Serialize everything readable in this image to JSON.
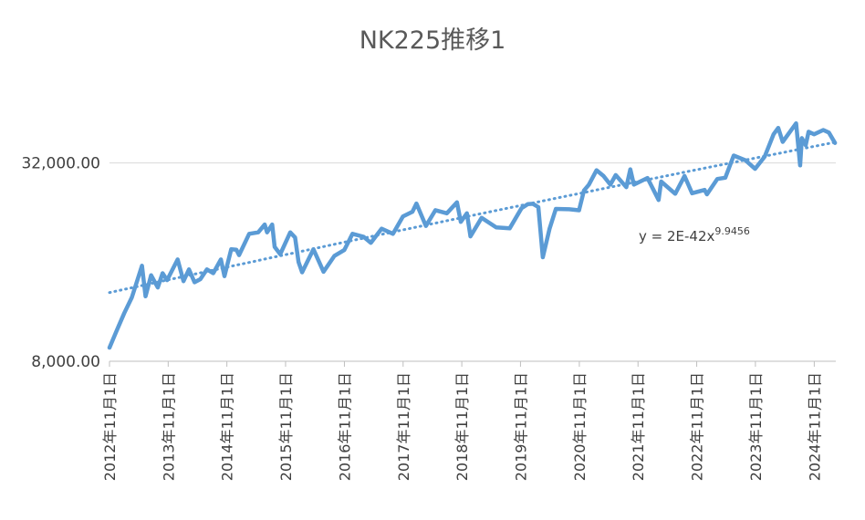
{
  "chart_data": {
    "type": "line",
    "title": "NK225推移1",
    "yscale": "log",
    "ylim": [
      8000,
      60000
    ],
    "yticks": [
      {
        "value": 8000,
        "label": "8,000.00"
      },
      {
        "value": 32000,
        "label": "32,000.00"
      }
    ],
    "xlim": [
      "2012-11-01",
      "2025-03-15"
    ],
    "xticks": [
      "2012年11月1日",
      "2013年11月1日",
      "2014年11月1日",
      "2015年11月1日",
      "2016年11月1日",
      "2017年11月1日",
      "2018年11月1日",
      "2019年11月1日",
      "2020年11月1日",
      "2021年11月1日",
      "2022年11月1日",
      "2023年11月1日",
      "2024年11月1日"
    ],
    "grid": {
      "horizontal": true,
      "vertical": false
    },
    "series": [
      {
        "color": "#5b9bd5",
        "points": [
          [
            "2012-11-01",
            8800
          ],
          [
            "2012-12-15",
            9900
          ],
          [
            "2013-02-01",
            11200
          ],
          [
            "2013-03-20",
            12500
          ],
          [
            "2013-05-22",
            15600
          ],
          [
            "2013-06-13",
            12600
          ],
          [
            "2013-07-18",
            14600
          ],
          [
            "2013-08-28",
            13400
          ],
          [
            "2013-09-27",
            14800
          ],
          [
            "2013-10-25",
            14100
          ],
          [
            "2013-12-30",
            16300
          ],
          [
            "2014-02-04",
            14000
          ],
          [
            "2014-03-10",
            15200
          ],
          [
            "2014-04-14",
            13900
          ],
          [
            "2014-05-20",
            14200
          ],
          [
            "2014-06-30",
            15200
          ],
          [
            "2014-08-08",
            14800
          ],
          [
            "2014-09-25",
            16300
          ],
          [
            "2014-10-17",
            14500
          ],
          [
            "2014-11-28",
            17500
          ],
          [
            "2014-12-30",
            17450
          ],
          [
            "2015-01-16",
            16800
          ],
          [
            "2015-03-20",
            19500
          ],
          [
            "2015-05-15",
            19700
          ],
          [
            "2015-06-24",
            20800
          ],
          [
            "2015-07-09",
            19700
          ],
          [
            "2015-08-10",
            20800
          ],
          [
            "2015-08-25",
            17800
          ],
          [
            "2015-09-29",
            16900
          ],
          [
            "2015-11-30",
            19700
          ],
          [
            "2015-12-30",
            19000
          ],
          [
            "2016-01-21",
            16000
          ],
          [
            "2016-02-12",
            14900
          ],
          [
            "2016-04-22",
            17500
          ],
          [
            "2016-06-24",
            14950
          ],
          [
            "2016-08-30",
            16700
          ],
          [
            "2016-10-31",
            17400
          ],
          [
            "2016-12-21",
            19500
          ],
          [
            "2017-02-28",
            19100
          ],
          [
            "2017-04-14",
            18300
          ],
          [
            "2017-06-20",
            20200
          ],
          [
            "2017-08-30",
            19500
          ],
          [
            "2017-10-31",
            22000
          ],
          [
            "2017-12-29",
            22750
          ],
          [
            "2018-01-23",
            24100
          ],
          [
            "2018-03-23",
            20600
          ],
          [
            "2018-05-21",
            23000
          ],
          [
            "2018-07-31",
            22500
          ],
          [
            "2018-10-02",
            24300
          ],
          [
            "2018-10-26",
            21200
          ],
          [
            "2018-12-03",
            22500
          ],
          [
            "2018-12-25",
            19150
          ],
          [
            "2019-03-04",
            21800
          ],
          [
            "2019-06-03",
            20400
          ],
          [
            "2019-08-26",
            20250
          ],
          [
            "2019-11-07",
            23300
          ],
          [
            "2019-12-17",
            24000
          ],
          [
            "2020-01-17",
            24050
          ],
          [
            "2020-02-20",
            23500
          ],
          [
            "2020-03-19",
            16550
          ],
          [
            "2020-04-30",
            20200
          ],
          [
            "2020-06-08",
            23200
          ],
          [
            "2020-08-31",
            23150
          ],
          [
            "2020-10-30",
            22980
          ],
          [
            "2020-11-30",
            26400
          ],
          [
            "2020-12-30",
            27450
          ],
          [
            "2021-02-16",
            30400
          ],
          [
            "2021-03-31",
            29200
          ],
          [
            "2021-05-13",
            27500
          ],
          [
            "2021-06-15",
            29400
          ],
          [
            "2021-08-20",
            27000
          ],
          [
            "2021-09-14",
            30600
          ],
          [
            "2021-10-06",
            27500
          ],
          [
            "2021-12-30",
            28800
          ],
          [
            "2022-03-09",
            24700
          ],
          [
            "2022-03-25",
            28100
          ],
          [
            "2022-06-20",
            25800
          ],
          [
            "2022-08-17",
            29200
          ],
          [
            "2022-10-03",
            25900
          ],
          [
            "2022-12-20",
            26500
          ],
          [
            "2023-01-04",
            25700
          ],
          [
            "2023-03-09",
            28600
          ],
          [
            "2023-04-28",
            28850
          ],
          [
            "2023-06-19",
            33700
          ],
          [
            "2023-08-31",
            32600
          ],
          [
            "2023-10-30",
            30700
          ],
          [
            "2023-12-29",
            33460
          ],
          [
            "2024-02-22",
            39100
          ],
          [
            "2024-03-22",
            40880
          ],
          [
            "2024-04-19",
            37070
          ],
          [
            "2024-07-11",
            42200
          ],
          [
            "2024-08-05",
            31460
          ],
          [
            "2024-08-16",
            38060
          ],
          [
            "2024-09-09",
            36200
          ],
          [
            "2024-09-27",
            39800
          ],
          [
            "2024-10-31",
            39080
          ],
          [
            "2024-12-27",
            40280
          ],
          [
            "2025-01-31",
            39570
          ],
          [
            "2025-03-10",
            36800
          ]
        ]
      }
    ],
    "trendline": {
      "type": "power",
      "style": "dotted",
      "equation_base": "y = 2E-42x",
      "equation_exponent": "9.9456"
    }
  }
}
